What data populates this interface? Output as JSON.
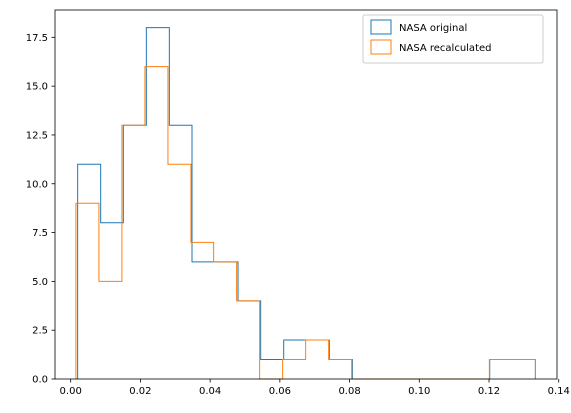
{
  "chart_data": {
    "type": "histogram",
    "title": "",
    "xlabel": "",
    "ylabel": "",
    "xlim": [
      -0.0045,
      0.1395
    ],
    "ylim": [
      0,
      18.9
    ],
    "xticks": [
      0.0,
      0.02,
      0.04,
      0.06,
      0.08,
      0.1,
      0.12,
      0.14
    ],
    "xtick_labels": [
      "0.00",
      "0.02",
      "0.04",
      "0.06",
      "0.08",
      "0.10",
      "0.12",
      "0.14"
    ],
    "yticks": [
      0.0,
      2.5,
      5.0,
      7.5,
      10.0,
      12.5,
      15.0,
      17.5
    ],
    "ytick_labels": [
      "0.0",
      "2.5",
      "5.0",
      "7.5",
      "10.0",
      "12.5",
      "15.0",
      "17.5"
    ],
    "legend_position": "upper-right",
    "series": [
      {
        "name": "NASA original",
        "color": "#1f77b4",
        "bin_edges": [
          0.002,
          0.0086,
          0.0151,
          0.0217,
          0.0283,
          0.0348,
          0.0414,
          0.048,
          0.0545,
          0.0611,
          0.0677,
          0.0742,
          0.0808,
          0.0874,
          0.0939,
          0.1005,
          0.1071,
          0.1136,
          0.1202,
          0.1268,
          0.1333
        ],
        "counts": [
          11,
          8,
          13,
          18,
          13,
          6,
          6,
          4,
          1,
          2,
          2,
          1,
          0,
          0,
          0,
          0,
          0,
          0,
          1,
          1
        ]
      },
      {
        "name": "NASA recalculated",
        "color": "#ff7f0e",
        "bin_edges": [
          0.0015,
          0.0081,
          0.0147,
          0.0213,
          0.0279,
          0.0345,
          0.041,
          0.0476,
          0.0542,
          0.0608,
          0.0674,
          0.074,
          0.0806,
          0.0872,
          0.0938,
          0.1004,
          0.107,
          0.1135,
          0.1201,
          0.1267,
          0.1333
        ],
        "counts": [
          9,
          5,
          13,
          16,
          11,
          7,
          6,
          4,
          0,
          1,
          2,
          1,
          0,
          0,
          0,
          0,
          0,
          0,
          1,
          1
        ]
      }
    ]
  }
}
